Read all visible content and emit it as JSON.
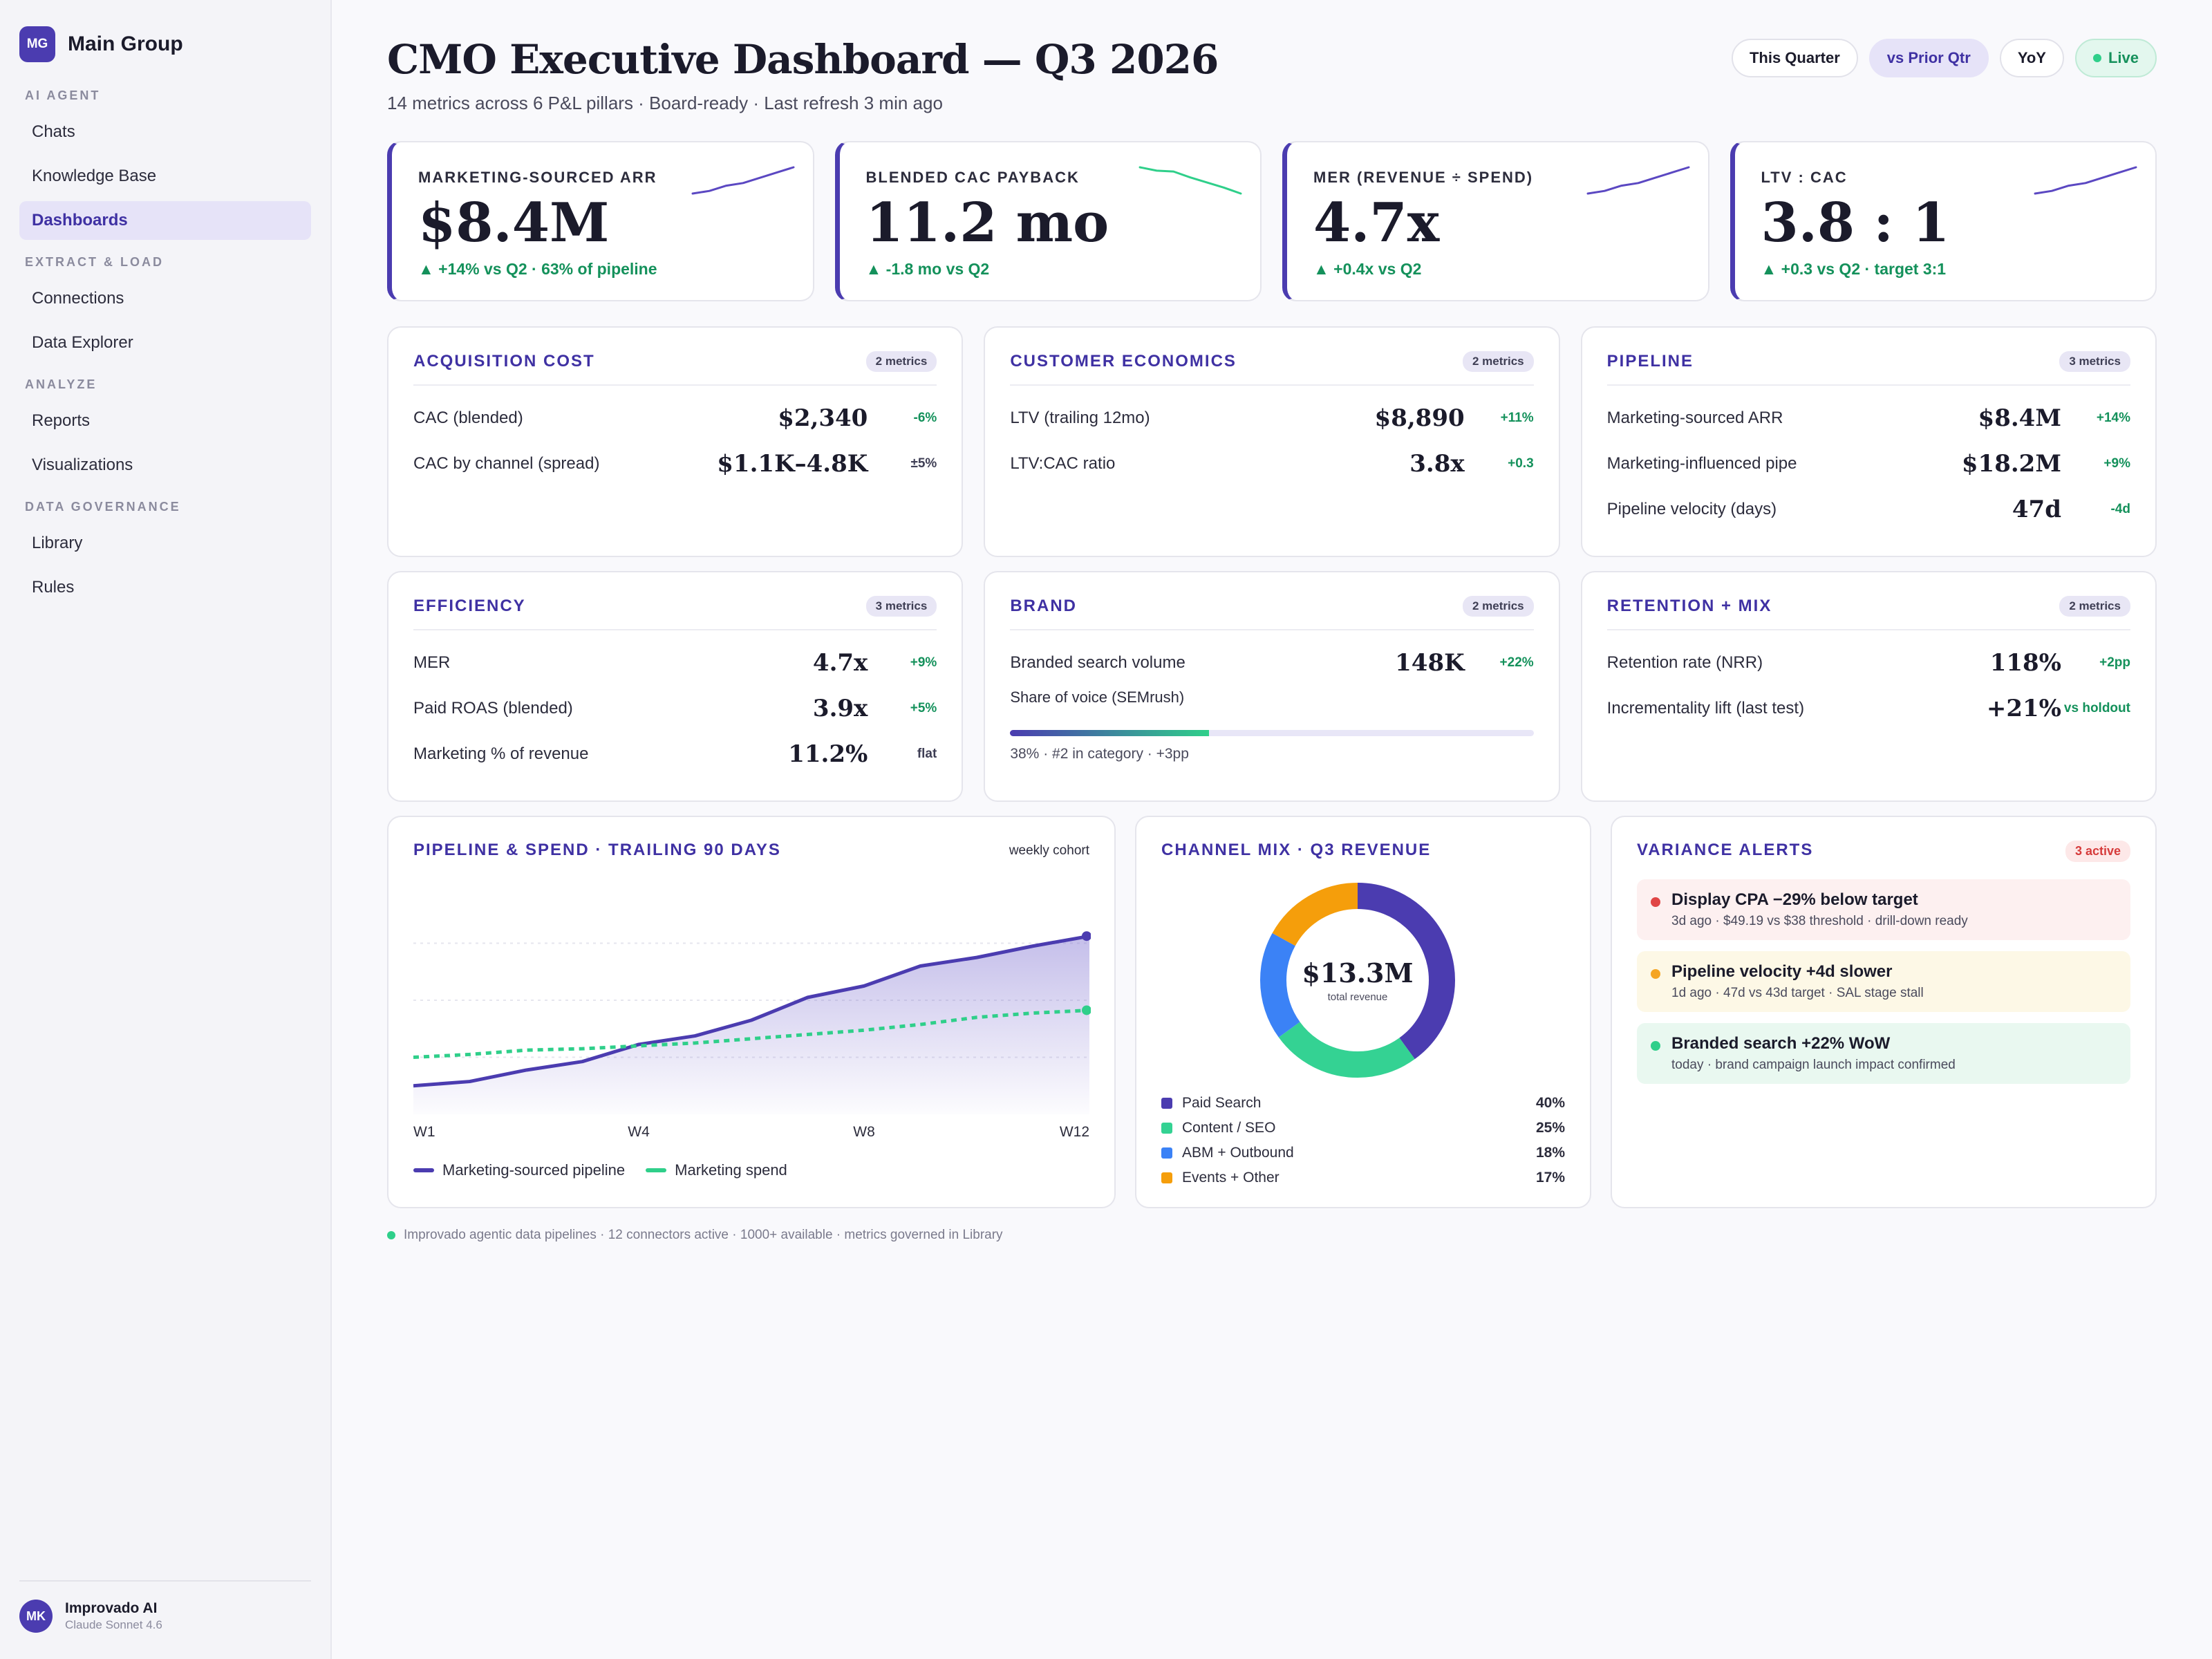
{
  "sidebar": {
    "brand_initials": "MG",
    "brand_name": "Main Group",
    "sections": [
      {
        "title": "AI AGENT",
        "items": [
          "Chats",
          "Knowledge Base",
          "Dashboards"
        ]
      },
      {
        "title": "EXTRACT & LOAD",
        "items": [
          "Connections",
          "Data Explorer"
        ]
      },
      {
        "title": "ANALYZE",
        "items": [
          "Reports",
          "Visualizations"
        ]
      },
      {
        "title": "DATA GOVERNANCE",
        "items": [
          "Library",
          "Rules"
        ]
      }
    ],
    "active_item": "Dashboards",
    "user_initials": "MK",
    "user_name": "Improvado AI",
    "user_model": "Claude Sonnet 4.6"
  },
  "header": {
    "title": "CMO Executive Dashboard — Q3 2026",
    "subtitle": "14 metrics across 6 P&L pillars · Board-ready · Last refresh 3 min ago",
    "pills": [
      "This Quarter",
      "vs Prior Qtr",
      "YoY",
      "Live"
    ],
    "selected_pill": "vs Prior Qtr"
  },
  "kpis": [
    {
      "label": "MARKETING-SOURCED ARR",
      "value": "$8.4M",
      "delta": "▲ +14% vs Q2 · 63% of pipeline",
      "spark": [
        2,
        3,
        5,
        6,
        8,
        10,
        12
      ],
      "spark_color": "#5b48c2"
    },
    {
      "label": "BLENDED CAC PAYBACK",
      "value": "11.2 mo",
      "delta": "▲ -1.8 mo vs Q2",
      "spark": [
        12,
        11.6,
        11.5,
        10.8,
        10.2,
        9.6,
        8.9
      ],
      "spark_color": "#2fcf8a"
    },
    {
      "label": "MER (REVENUE ÷ SPEND)",
      "value": "4.7x",
      "delta": "▲ +0.4x vs Q2",
      "spark": [
        2,
        3,
        5,
        6,
        8,
        10,
        12
      ],
      "spark_color": "#5b48c2"
    },
    {
      "label": "LTV : CAC",
      "value": "3.8 : 1",
      "delta": "▲ +0.3 vs Q2 · target 3:1",
      "spark": [
        2,
        3,
        5,
        6,
        8,
        10,
        12
      ],
      "spark_color": "#5b48c2"
    }
  ],
  "pillars": [
    {
      "title": "ACQUISITION COST",
      "badge": "2 metrics",
      "rows": [
        {
          "label": "CAC (blended)",
          "value": "$2,340",
          "delta": "-6%",
          "neutral": false
        },
        {
          "label": "CAC by channel (spread)",
          "value": "$1.1K–4.8K",
          "delta": "±5%",
          "neutral": true
        }
      ]
    },
    {
      "title": "CUSTOMER ECONOMICS",
      "badge": "2 metrics",
      "rows": [
        {
          "label": "LTV (trailing 12mo)",
          "value": "$8,890",
          "delta": "+11%",
          "neutral": false
        },
        {
          "label": "LTV:CAC ratio",
          "value": "3.8x",
          "delta": "+0.3",
          "neutral": false
        }
      ]
    },
    {
      "title": "PIPELINE",
      "badge": "3 metrics",
      "rows": [
        {
          "label": "Marketing-sourced ARR",
          "value": "$8.4M",
          "delta": "+14%",
          "neutral": false
        },
        {
          "label": "Marketing-influenced pipe",
          "value": "$18.2M",
          "delta": "+9%",
          "neutral": false
        },
        {
          "label": "Pipeline velocity (days)",
          "value": "47d",
          "delta": "-4d",
          "neutral": false
        }
      ]
    },
    {
      "title": "EFFICIENCY",
      "badge": "3 metrics",
      "rows": [
        {
          "label": "MER",
          "value": "4.7x",
          "delta": "+9%",
          "neutral": false
        },
        {
          "label": "Paid ROAS (blended)",
          "value": "3.9x",
          "delta": "+5%",
          "neutral": false
        },
        {
          "label": "Marketing % of revenue",
          "value": "11.2%",
          "delta": "flat",
          "neutral": true
        }
      ]
    },
    {
      "title": "BRAND",
      "badge": "2 metrics",
      "rows": [
        {
          "label": "Branded search volume",
          "value": "148K",
          "delta": "+22%",
          "neutral": false
        }
      ],
      "sov_label": "Share of voice (SEMrush)",
      "sov_fraction": 0.38,
      "sov_caption": "38% · #2 in category · +3pp"
    },
    {
      "title": "RETENTION + MIX",
      "badge": "2 metrics",
      "rows": [
        {
          "label": "Retention rate (NRR)",
          "value": "118%",
          "delta": "+2pp",
          "neutral": false
        },
        {
          "label": "Incrementality lift (last test)",
          "value": "+21%",
          "delta": "vs holdout",
          "neutral": false
        }
      ]
    }
  ],
  "pipeline_chart": {
    "title": "PIPELINE & SPEND · TRAILING 90 DAYS",
    "note": "weekly cohort",
    "chart_data": {
      "type": "area",
      "x": [
        "W1",
        "W2",
        "W3",
        "W4",
        "W5",
        "W6",
        "W7",
        "W8",
        "W9",
        "W10",
        "W11",
        "W12",
        "W13"
      ],
      "tick_labels": [
        "W1",
        "W4",
        "W8",
        "W12"
      ],
      "series": [
        {
          "name": "Marketing-sourced pipeline",
          "values": [
            2.0,
            2.3,
            3.1,
            3.7,
            4.9,
            5.5,
            6.6,
            8.2,
            9.0,
            10.4,
            11.0,
            11.8,
            12.5
          ],
          "color": "#4b3cb0"
        },
        {
          "name": "Marketing spend",
          "values": [
            4.0,
            4.2,
            4.5,
            4.6,
            4.8,
            5.0,
            5.3,
            5.6,
            5.9,
            6.3,
            6.8,
            7.1,
            7.3
          ],
          "color": "#2fcf8a"
        }
      ],
      "ylim": [
        0,
        16
      ]
    }
  },
  "channel_mix": {
    "title": "CHANNEL MIX · Q3 REVENUE",
    "total": "$13.3M",
    "total_label": "total revenue",
    "chart_data": {
      "type": "pie",
      "categories": [
        "Paid Search",
        "Content / SEO",
        "ABM + Outbound",
        "Events + Other"
      ],
      "values": [
        40,
        25,
        18,
        17
      ],
      "labels": [
        "40%",
        "25%",
        "18%",
        "17%"
      ],
      "colors": [
        "#4b3cb0",
        "#34d293",
        "#3b82f6",
        "#f59e0b"
      ]
    }
  },
  "alerts": {
    "title": "VARIANCE ALERTS",
    "badge": "3 active",
    "items": [
      {
        "title": "Display CPA −29% below target",
        "sub": "3d ago · $49.19 vs $38 threshold · drill-down ready",
        "dot": "#e04545",
        "bg": "#fdf0f0"
      },
      {
        "title": "Pipeline velocity +4d slower",
        "sub": "1d ago · 47d vs 43d target · SAL stage stall",
        "dot": "#f5a524",
        "bg": "#fdf8e6"
      },
      {
        "title": "Branded search +22% WoW",
        "sub": "today · brand campaign launch impact confirmed",
        "dot": "#2fcf8a",
        "bg": "#e9f8f0"
      }
    ]
  },
  "footer": "Improvado agentic data pipelines · 12 connectors active · 1000+ available · metrics governed in Library"
}
